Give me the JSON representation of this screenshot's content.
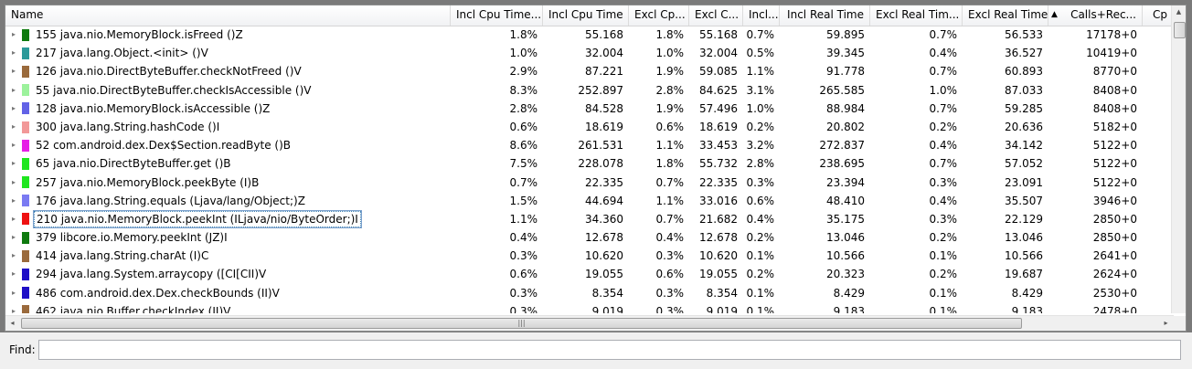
{
  "columns": [
    {
      "key": "name",
      "label": "Name",
      "align": "name"
    },
    {
      "key": "incl_cpu_pct",
      "label": "Incl Cpu Time..."
    },
    {
      "key": "incl_cpu",
      "label": "Incl Cpu Time"
    },
    {
      "key": "excl_cpu_pct",
      "label": "Excl Cp..."
    },
    {
      "key": "excl_cpu",
      "label": "Excl C..."
    },
    {
      "key": "incl_real_pct",
      "label": "Incl..."
    },
    {
      "key": "incl_real",
      "label": "Incl Real Time"
    },
    {
      "key": "excl_real_pct",
      "label": "Excl Real Tim..."
    },
    {
      "key": "excl_real",
      "label": "Excl Real Time"
    },
    {
      "key": "calls",
      "label": "Calls+Rec...",
      "sort_arrow": "▲"
    },
    {
      "key": "cpu_next",
      "label": "Cp"
    }
  ],
  "rows": [
    {
      "color": "#0f7a0f",
      "name": "155 java.nio.MemoryBlock.isFreed ()Z",
      "incl_cpu_pct": "1.8%",
      "incl_cpu": "55.168",
      "excl_cpu_pct": "1.8%",
      "excl_cpu": "55.168",
      "incl_real_pct": "0.7%",
      "incl_real": "59.895",
      "excl_real_pct": "0.7%",
      "excl_real": "56.533",
      "calls": "17178+0"
    },
    {
      "color": "#2c9a9a",
      "name": "217 java.lang.Object.<init> ()V",
      "incl_cpu_pct": "1.0%",
      "incl_cpu": "32.004",
      "excl_cpu_pct": "1.0%",
      "excl_cpu": "32.004",
      "incl_real_pct": "0.5%",
      "incl_real": "39.345",
      "excl_real_pct": "0.4%",
      "excl_real": "36.527",
      "calls": "10419+0"
    },
    {
      "color": "#9a6a3c",
      "name": "126 java.nio.DirectByteBuffer.checkNotFreed ()V",
      "incl_cpu_pct": "2.9%",
      "incl_cpu": "87.221",
      "excl_cpu_pct": "1.9%",
      "excl_cpu": "59.085",
      "incl_real_pct": "1.1%",
      "incl_real": "91.778",
      "excl_real_pct": "0.7%",
      "excl_real": "60.893",
      "calls": "8770+0"
    },
    {
      "color": "#9cf29c",
      "name": "55 java.nio.DirectByteBuffer.checkIsAccessible ()V",
      "incl_cpu_pct": "8.3%",
      "incl_cpu": "252.897",
      "excl_cpu_pct": "2.8%",
      "excl_cpu": "84.625",
      "incl_real_pct": "3.1%",
      "incl_real": "265.585",
      "excl_real_pct": "1.0%",
      "excl_real": "87.033",
      "calls": "8408+0"
    },
    {
      "color": "#6262e6",
      "name": "128 java.nio.MemoryBlock.isAccessible ()Z",
      "incl_cpu_pct": "2.8%",
      "incl_cpu": "84.528",
      "excl_cpu_pct": "1.9%",
      "excl_cpu": "57.496",
      "incl_real_pct": "1.0%",
      "incl_real": "88.984",
      "excl_real_pct": "0.7%",
      "excl_real": "59.285",
      "calls": "8408+0"
    },
    {
      "color": "#f29898",
      "name": "300 java.lang.String.hashCode ()I",
      "incl_cpu_pct": "0.6%",
      "incl_cpu": "18.619",
      "excl_cpu_pct": "0.6%",
      "excl_cpu": "18.619",
      "incl_real_pct": "0.2%",
      "incl_real": "20.802",
      "excl_real_pct": "0.2%",
      "excl_real": "20.636",
      "calls": "5182+0"
    },
    {
      "color": "#e61ee6",
      "name": "52 com.android.dex.Dex$Section.readByte ()B",
      "incl_cpu_pct": "8.6%",
      "incl_cpu": "261.531",
      "excl_cpu_pct": "1.1%",
      "excl_cpu": "33.453",
      "incl_real_pct": "3.2%",
      "incl_real": "272.837",
      "excl_real_pct": "0.4%",
      "excl_real": "34.142",
      "calls": "5122+0"
    },
    {
      "color": "#1ee61e",
      "name": "65 java.nio.DirectByteBuffer.get ()B",
      "incl_cpu_pct": "7.5%",
      "incl_cpu": "228.078",
      "excl_cpu_pct": "1.8%",
      "excl_cpu": "55.732",
      "incl_real_pct": "2.8%",
      "incl_real": "238.695",
      "excl_real_pct": "0.7%",
      "excl_real": "57.052",
      "calls": "5122+0"
    },
    {
      "color": "#1ee61e",
      "name": "257 java.nio.MemoryBlock.peekByte (I)B",
      "incl_cpu_pct": "0.7%",
      "incl_cpu": "22.335",
      "excl_cpu_pct": "0.7%",
      "excl_cpu": "22.335",
      "incl_real_pct": "0.3%",
      "incl_real": "23.394",
      "excl_real_pct": "0.3%",
      "excl_real": "23.091",
      "calls": "5122+0"
    },
    {
      "color": "#7a7af2",
      "name": "176 java.lang.String.equals (Ljava/lang/Object;)Z",
      "incl_cpu_pct": "1.5%",
      "incl_cpu": "44.694",
      "excl_cpu_pct": "1.1%",
      "excl_cpu": "33.016",
      "incl_real_pct": "0.6%",
      "incl_real": "48.410",
      "excl_real_pct": "0.4%",
      "excl_real": "35.507",
      "calls": "3946+0"
    },
    {
      "color": "#ee1111",
      "name": "210 java.nio.MemoryBlock.peekInt (ILjava/nio/ByteOrder;)I",
      "incl_cpu_pct": "1.1%",
      "incl_cpu": "34.360",
      "excl_cpu_pct": "0.7%",
      "excl_cpu": "21.682",
      "incl_real_pct": "0.4%",
      "incl_real": "35.175",
      "excl_real_pct": "0.3%",
      "excl_real": "22.129",
      "calls": "2850+0",
      "focus": true
    },
    {
      "color": "#0f7a0f",
      "name": "379 libcore.io.Memory.peekInt (JZ)I",
      "incl_cpu_pct": "0.4%",
      "incl_cpu": "12.678",
      "excl_cpu_pct": "0.4%",
      "excl_cpu": "12.678",
      "incl_real_pct": "0.2%",
      "incl_real": "13.046",
      "excl_real_pct": "0.2%",
      "excl_real": "13.046",
      "calls": "2850+0"
    },
    {
      "color": "#9a6a3c",
      "name": "414 java.lang.String.charAt (I)C",
      "incl_cpu_pct": "0.3%",
      "incl_cpu": "10.620",
      "excl_cpu_pct": "0.3%",
      "excl_cpu": "10.620",
      "incl_real_pct": "0.1%",
      "incl_real": "10.566",
      "excl_real_pct": "0.1%",
      "excl_real": "10.566",
      "calls": "2641+0"
    },
    {
      "color": "#1f0fc6",
      "name": "294 java.lang.System.arraycopy ([CI[CII)V",
      "incl_cpu_pct": "0.6%",
      "incl_cpu": "19.055",
      "excl_cpu_pct": "0.6%",
      "excl_cpu": "19.055",
      "incl_real_pct": "0.2%",
      "incl_real": "20.323",
      "excl_real_pct": "0.2%",
      "excl_real": "19.687",
      "calls": "2624+0"
    },
    {
      "color": "#1f0fc6",
      "name": "486 com.android.dex.Dex.checkBounds (II)V",
      "incl_cpu_pct": "0.3%",
      "incl_cpu": "8.354",
      "excl_cpu_pct": "0.3%",
      "excl_cpu": "8.354",
      "incl_real_pct": "0.1%",
      "incl_real": "8.429",
      "excl_real_pct": "0.1%",
      "excl_real": "8.429",
      "calls": "2530+0"
    },
    {
      "color": "#9a6a3c",
      "name": "462 java.nio.Buffer.checkIndex (II)V",
      "incl_cpu_pct": "0.3%",
      "incl_cpu": "9.019",
      "excl_cpu_pct": "0.3%",
      "excl_cpu": "9.019",
      "incl_real_pct": "0.1%",
      "incl_real": "9.183",
      "excl_real_pct": "0.1%",
      "excl_real": "9.183",
      "calls": "2478+0"
    }
  ],
  "icons": {
    "expander": "▸",
    "scroll_up": "▲",
    "scroll_down": "▼",
    "scroll_left": "◂",
    "scroll_right": "▸",
    "thumb_grip": "|||"
  },
  "find": {
    "label": "Find:",
    "value": ""
  }
}
